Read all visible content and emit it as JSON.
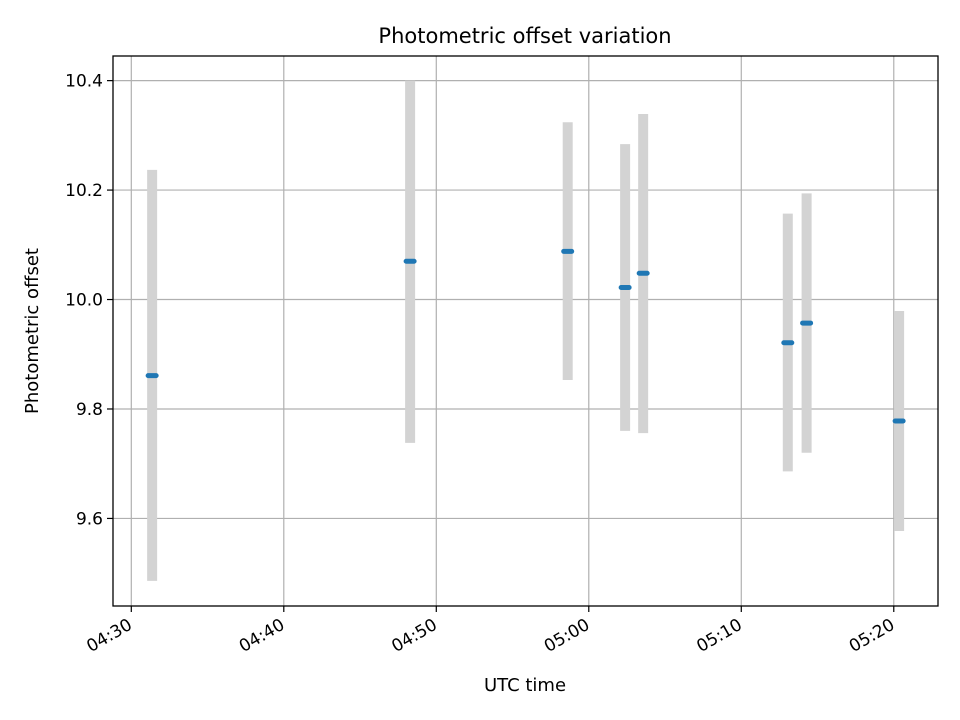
{
  "chart_data": {
    "type": "scatter",
    "title": "Photometric offset variation",
    "xlabel": "UTC time",
    "ylabel": "Photometric offset",
    "x_ticks": [
      "04:30",
      "04:40",
      "04:50",
      "05:00",
      "05:10",
      "05:20"
    ],
    "x_tick_minutes": [
      270,
      280,
      290,
      300,
      310,
      320
    ],
    "xlim_minutes": [
      268.8,
      322.9
    ],
    "y_ticks": [
      "9.6",
      "9.8",
      "10.0",
      "10.2",
      "10.4"
    ],
    "ylim": [
      9.44,
      10.445
    ],
    "grid": true,
    "colors": {
      "point": "#1f77b4",
      "errorbar": "#d3d3d3",
      "grid": "#b0b0b0"
    },
    "points": [
      {
        "time": "04:31:22",
        "value": 9.861,
        "low": 9.486,
        "high": 10.237
      },
      {
        "time": "04:48:17",
        "value": 10.07,
        "low": 9.738,
        "high": 10.4
      },
      {
        "time": "04:58:37",
        "value": 10.088,
        "low": 9.853,
        "high": 10.324
      },
      {
        "time": "05:02:23",
        "value": 10.022,
        "low": 9.76,
        "high": 10.284
      },
      {
        "time": "05:03:34",
        "value": 10.048,
        "low": 9.756,
        "high": 10.339
      },
      {
        "time": "05:13:03",
        "value": 9.921,
        "low": 9.686,
        "high": 10.157
      },
      {
        "time": "05:14:17",
        "value": 9.957,
        "low": 9.72,
        "high": 10.194
      },
      {
        "time": "05:20:21",
        "value": 9.778,
        "low": 9.577,
        "high": 9.979
      }
    ]
  }
}
